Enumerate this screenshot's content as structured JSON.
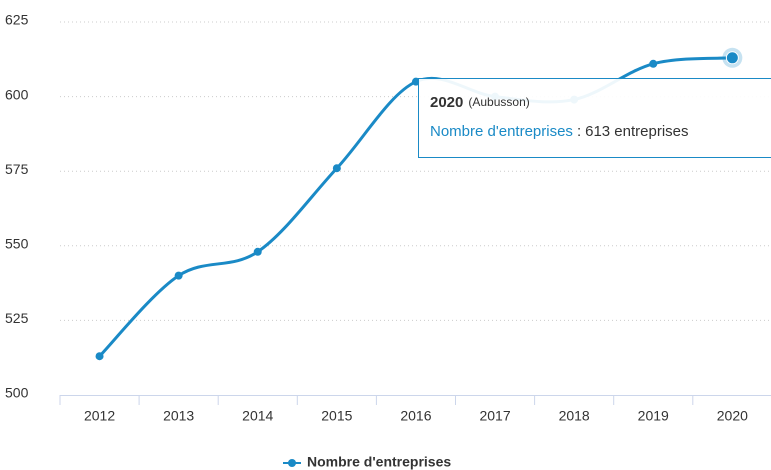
{
  "chart_data": {
    "type": "line",
    "categories": [
      "2012",
      "2013",
      "2014",
      "2015",
      "2016",
      "2017",
      "2018",
      "2019",
      "2020"
    ],
    "series": [
      {
        "name": "Nombre d'entreprises",
        "color": "#1a8ac6",
        "values": [
          513,
          540,
          548,
          576,
          605,
          600,
          599,
          611,
          613
        ],
        "value_labels": [
          null,
          null,
          null,
          null,
          null,
          null,
          null,
          null,
          "613 entreprises"
        ]
      }
    ],
    "ylim": [
      500,
      625
    ],
    "yticks": [
      500,
      525,
      550,
      575,
      600,
      625
    ],
    "grid": true,
    "legend": "bottom",
    "tooltip": {
      "index": 8,
      "place": "(Aubusson)",
      "separator": ":"
    }
  }
}
